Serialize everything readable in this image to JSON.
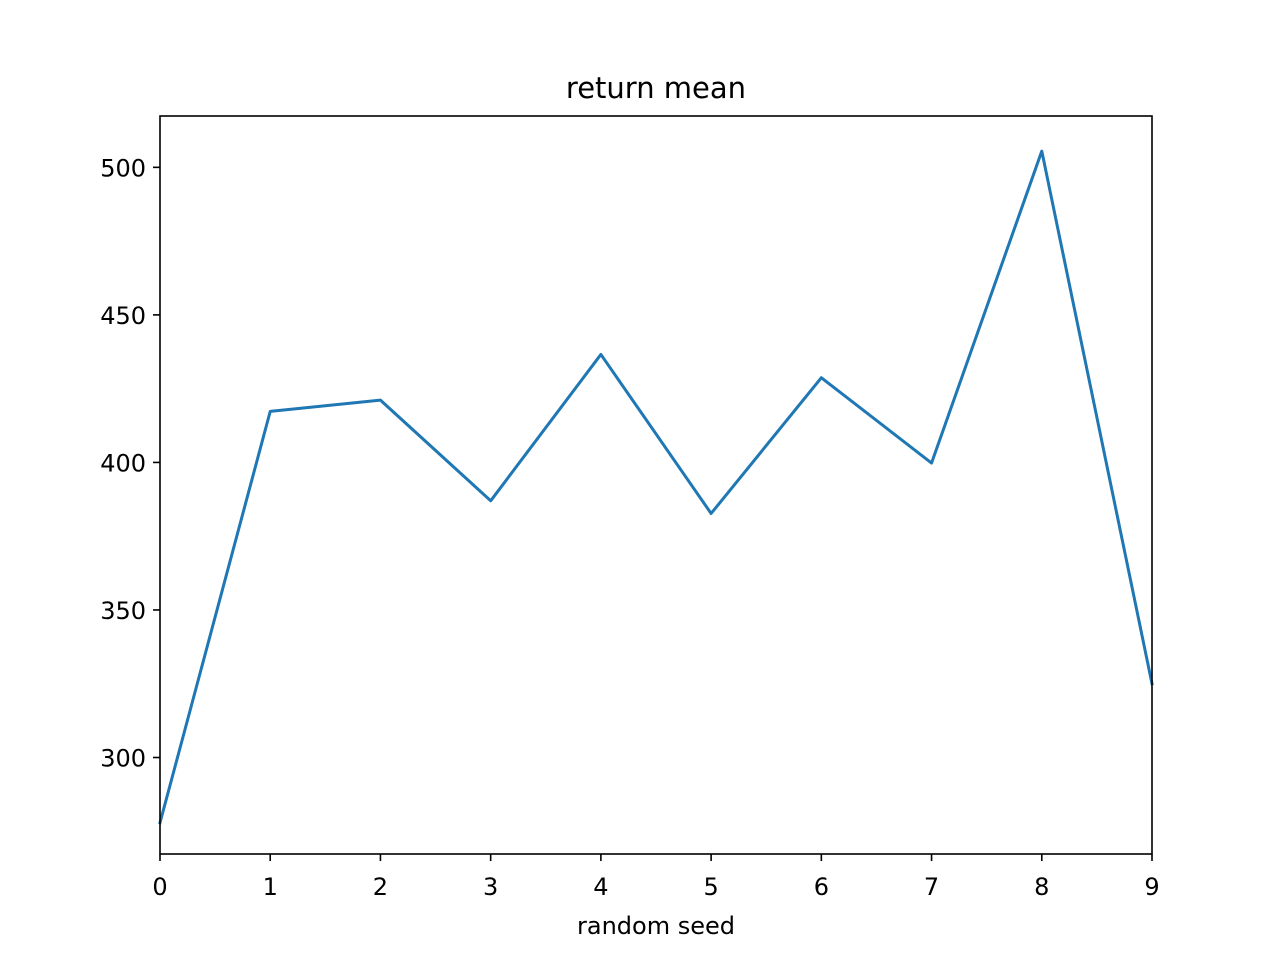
{
  "chart_data": {
    "type": "line",
    "title": "return mean",
    "xlabel": "random seed",
    "ylabel": "",
    "x": [
      0,
      1,
      2,
      3,
      4,
      5,
      6,
      7,
      8,
      9
    ],
    "series": [
      {
        "values": [
          277.9,
          417.3,
          421.1,
          387.0,
          436.6,
          382.7,
          428.7,
          399.8,
          505.5,
          325.0
        ],
        "color": "#1f77b4"
      }
    ],
    "xlim": [
      0,
      9
    ],
    "ylim": [
      267.3,
      517.4
    ],
    "xticks": [
      0,
      1,
      2,
      3,
      4,
      5,
      6,
      7,
      8,
      9
    ],
    "yticks": [
      300,
      350,
      400,
      450,
      500
    ],
    "grid": false,
    "legend": "none"
  }
}
